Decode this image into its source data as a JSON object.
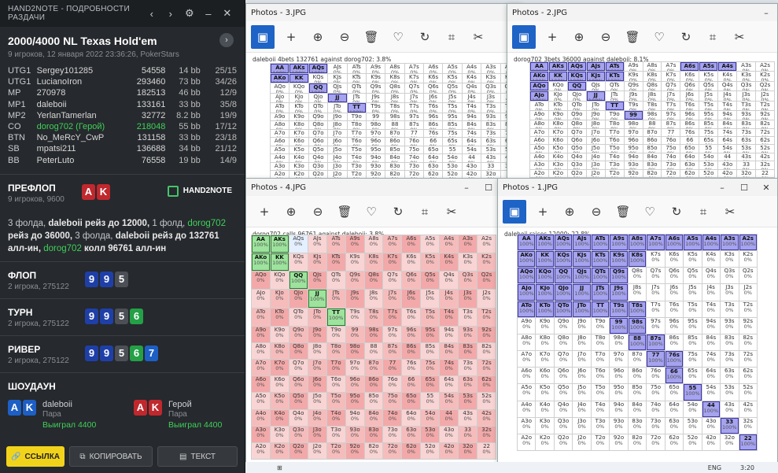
{
  "h2n": {
    "title": "HAND2NOTE - ПОДРОБНОСТИ РАЗДАЧИ",
    "game": "2000/4000 NL Texas Hold'em",
    "meta": "9 игроков, 12 января 2022 23:36:26, PokerStars",
    "players": [
      {
        "pos": "UTG1",
        "name": "Sergey101285",
        "stack": "54558",
        "bb": "14 bb",
        "vp": "25/15"
      },
      {
        "pos": "UTG1",
        "name": "LucianoIron",
        "stack": "293460",
        "bb": "73 bb",
        "vp": "34/26"
      },
      {
        "pos": "MP",
        "name": "270978",
        "stack": "182513",
        "bb": "46 bb",
        "vp": "12/9"
      },
      {
        "pos": "MP1",
        "name": "daleboii",
        "stack": "133161",
        "bb": "33 bb",
        "vp": "35/8"
      },
      {
        "pos": "MP2",
        "name": "YerlanTamerlan",
        "stack": "32772",
        "bb": "8.2 bb",
        "vp": "19/9"
      },
      {
        "pos": "CO",
        "name": "dorog702 (Герой)",
        "stack": "218048",
        "bb": "55 bb",
        "vp": "17/12"
      },
      {
        "pos": "BTN",
        "name": "No_MeRcY_CwP",
        "stack": "131158",
        "bb": "33 bb",
        "vp": "23/18"
      },
      {
        "pos": "SB",
        "name": "mpatsi211",
        "stack": "136688",
        "bb": "34 bb",
        "vp": "21/12"
      },
      {
        "pos": "BB",
        "name": "PeterLuto",
        "stack": "76558",
        "bb": "19 bb",
        "vp": "14/9"
      }
    ],
    "preflop": {
      "title": "ПРЕФЛОП",
      "sub": "9 игроков, 9600",
      "logo": "HAND2NOTE",
      "a1": "3 фолда, ",
      "a2": "daleboii",
      "a3": " рейз до 12000, ",
      "a4": "1 фолд, ",
      "a5": "dorog702",
      "a6": " рейз до 36000, ",
      "a7": "3 фолда, ",
      "a8": "daleboii",
      "a9": " рейз до 132761 алл-ин, ",
      "a10": "dorog702",
      "a11": " колл 96761 алл-ин"
    },
    "flop": {
      "title": "ФЛОП",
      "sub": "2 игрока, 275122"
    },
    "turn": {
      "title": "ТУРН",
      "sub": "2 игрока, 275122"
    },
    "river": {
      "title": "РИВЕР",
      "sub": "2 игрока, 275122"
    },
    "showdown": {
      "title": "ШОУДАУН",
      "p1": "daleboii",
      "p1hand": "Пара",
      "p1win": "Выиграл 4400",
      "p2": "Герой",
      "p2hand": "Пара",
      "p2win": "Выиграл 4400"
    },
    "buttons": {
      "link": "ССЫЛКА",
      "copy": "КОПИРОВАТЬ",
      "text": "ТЕКСТ"
    },
    "hole_cards": [
      "A",
      "K"
    ],
    "board": [
      "9",
      "9",
      "5",
      "6",
      "7"
    ]
  },
  "photos": [
    {
      "title": "Photos - 3.JPG",
      "caption": "daleboii 4bets 132761 against dorog702: 3.8%"
    },
    {
      "title": "Photos - 2.JPG",
      "caption": "dorog702 3bets 36000 against daleboii: 8.1%"
    },
    {
      "title": "Photos - 4.JPG",
      "caption": "dorog702 calls 96761 against daleboii: 3.8%"
    },
    {
      "title": "Photos - 1.JPG",
      "caption": "daleboii raises 12000: 22.8%"
    }
  ],
  "taskbar": {
    "time": "3:20",
    "lang": "ENG"
  }
}
